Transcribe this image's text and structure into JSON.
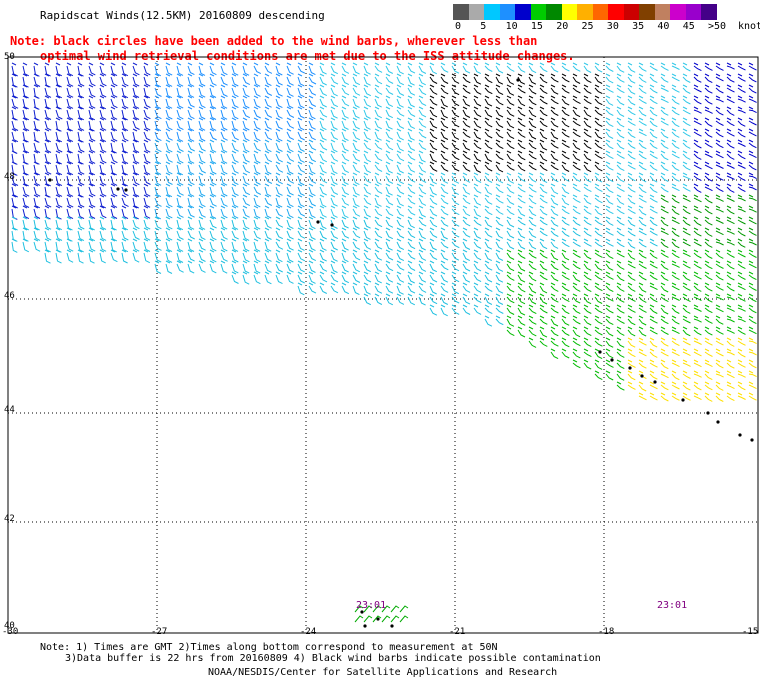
{
  "title": "Rapidscat Winds(12.5KM) 20160809 descending",
  "note_line1": "Note: black circles have been added to the wind barbs, wherever less than",
  "note_line2": "optimal wind retrieval conditions are met due to the ISS attitude changes.",
  "scale": {
    "labels": [
      "0",
      "5",
      "10",
      "15",
      "20",
      "25",
      "30",
      "35",
      "40",
      "45",
      ">50"
    ],
    "unit": "knots",
    "colors": [
      "#555555",
      "#aaaaaa",
      "#00c8ff",
      "#1e90ff",
      "#0000cc",
      "#00cc00",
      "#008800",
      "#ffff00",
      "#ffb000",
      "#ff6600",
      "#ff0000",
      "#cc0000",
      "#804000",
      "#c08060",
      "#cc00cc",
      "#9900cc",
      "#440088"
    ]
  },
  "axes": {
    "x_labels": [
      "-30",
      "-27",
      "-24",
      "-21",
      "-18",
      "-15"
    ],
    "y_labels": [
      "50",
      "48",
      "46",
      "44",
      "42",
      "40"
    ]
  },
  "pass_times": [
    "23:01",
    "23:01"
  ],
  "footer": {
    "line1": "Note: 1) Times are GMT 2)Times along bottom correspond to measurement at 50N",
    "line2": "3)Data buffer is 22 hrs from 20160809 4) Black wind barbs indicate possible contamination",
    "credit": "NOAA/NESDIS/Center for Satellite Applications and Research"
  }
}
